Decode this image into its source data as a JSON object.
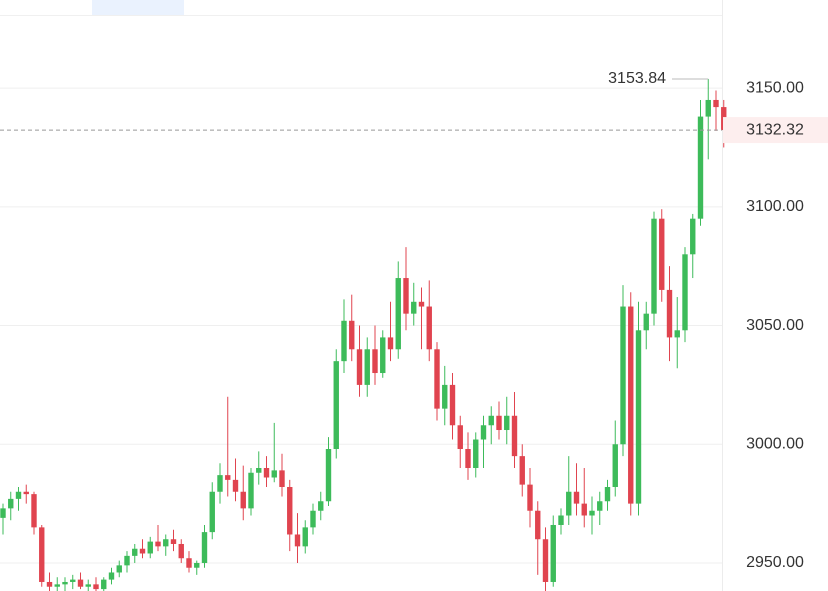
{
  "chart_data": {
    "type": "candlestick",
    "up_color": "#3dbb5a",
    "down_color": "#e0444f",
    "open": [
      2969,
      2973,
      2977,
      2980,
      2979,
      2965,
      2942,
      2940,
      2941,
      2942,
      2943,
      2940,
      2941,
      2939,
      2943,
      2946,
      2949,
      2953,
      2956,
      2954,
      2959,
      2957,
      2960,
      2958,
      2952,
      2948,
      2950,
      2963,
      2980,
      2987,
      2985,
      2980,
      2973,
      2988,
      2990,
      2986,
      2989,
      2982,
      2962,
      2957,
      2965,
      2972,
      2976,
      2998,
      3035,
      3052,
      3040,
      3025,
      3040,
      3030,
      3045,
      3040,
      3070,
      3055,
      3060,
      3058,
      3040,
      3015,
      3025,
      3008,
      2998,
      2990,
      3002,
      3008,
      3012,
      3006,
      3012,
      2995,
      2983,
      2972,
      2960,
      2942,
      2966,
      2970,
      2980,
      2975,
      2970,
      2972,
      2976,
      2982,
      3000,
      3058,
      2975,
      3048,
      3055,
      3095,
      3065,
      3045,
      3048,
      3080,
      3095,
      3138,
      3145,
      3142
    ],
    "high": [
      2975,
      2980,
      2982,
      2983,
      2980,
      2966,
      2946,
      2944,
      2944,
      2945,
      2946,
      2943,
      2944,
      2944,
      2948,
      2951,
      2955,
      2958,
      2960,
      2961,
      2966,
      2962,
      2964,
      2960,
      2955,
      2951,
      2966,
      2984,
      2992,
      3020,
      2994,
      2991,
      2990,
      2997,
      2995,
      3009,
      2996,
      2985,
      2971,
      2968,
      2975,
      2980,
      3003,
      3040,
      3061,
      3063,
      3050,
      3045,
      3050,
      3048,
      3060,
      3077,
      3083,
      3068,
      3066,
      3069,
      3043,
      3033,
      3030,
      3012,
      3005,
      3005,
      3012,
      3016,
      3018,
      3020,
      3022,
      3000,
      2990,
      2976,
      2965,
      2970,
      2973,
      2995,
      2992,
      2990,
      2978,
      2980,
      2985,
      3010,
      3067,
      3064,
      3060,
      3060,
      3098,
      3099,
      3075,
      3062,
      3083,
      3097,
      3145,
      3153.84,
      3149,
      3145
    ],
    "low": [
      2962,
      2968,
      2972,
      2975,
      2962,
      2940,
      2938,
      2938,
      2938,
      2939,
      2939,
      2938,
      2938,
      2938,
      2941,
      2944,
      2946,
      2950,
      2952,
      2952,
      2955,
      2953,
      2955,
      2950,
      2946,
      2945,
      2948,
      2960,
      2975,
      2978,
      2976,
      2968,
      2970,
      2983,
      2982,
      2984,
      2978,
      2955,
      2950,
      2954,
      2962,
      2968,
      2974,
      2994,
      3030,
      3035,
      3020,
      3020,
      3025,
      3028,
      3035,
      3036,
      3048,
      3050,
      3040,
      3035,
      3010,
      3008,
      3002,
      2990,
      2985,
      2986,
      2990,
      3000,
      3002,
      3000,
      2990,
      2978,
      2965,
      2945,
      2938,
      2940,
      2962,
      2966,
      2970,
      2965,
      2962,
      2966,
      2972,
      2978,
      2995,
      2970,
      2970,
      3040,
      3050,
      3060,
      3035,
      3032,
      3043,
      3070,
      3092,
      3120,
      3132,
      3125
    ],
    "close": [
      2973,
      2977,
      2980,
      2979,
      2965,
      2942,
      2940,
      2941,
      2942,
      2943,
      2940,
      2941,
      2939,
      2943,
      2946,
      2949,
      2953,
      2956,
      2954,
      2959,
      2957,
      2960,
      2958,
      2952,
      2948,
      2950,
      2963,
      2980,
      2987,
      2985,
      2980,
      2973,
      2988,
      2990,
      2986,
      2989,
      2982,
      2962,
      2957,
      2965,
      2972,
      2976,
      2998,
      3035,
      3052,
      3040,
      3025,
      3040,
      3030,
      3045,
      3040,
      3070,
      3055,
      3060,
      3058,
      3040,
      3015,
      3025,
      3008,
      2998,
      2990,
      3002,
      3008,
      3012,
      3006,
      3012,
      2995,
      2983,
      2972,
      2960,
      2942,
      2966,
      2970,
      2980,
      2975,
      2970,
      2972,
      2976,
      2982,
      3000,
      3058,
      2975,
      3048,
      3055,
      3095,
      3065,
      3045,
      3048,
      3080,
      3095,
      3138,
      3145,
      3142,
      3132.32
    ],
    "ylim": [
      2938.2,
      3187.1
    ],
    "yticks": [
      {
        "value": 2950,
        "label": "2950.00"
      },
      {
        "value": 3000,
        "label": "3000.00"
      },
      {
        "value": 3050,
        "label": "3050.00"
      },
      {
        "value": 3100,
        "label": "3100.00"
      },
      {
        "value": 3150,
        "label": "3150.00"
      }
    ],
    "grid": true,
    "max_price": 3153.84,
    "last_price": 3132.32
  }
}
